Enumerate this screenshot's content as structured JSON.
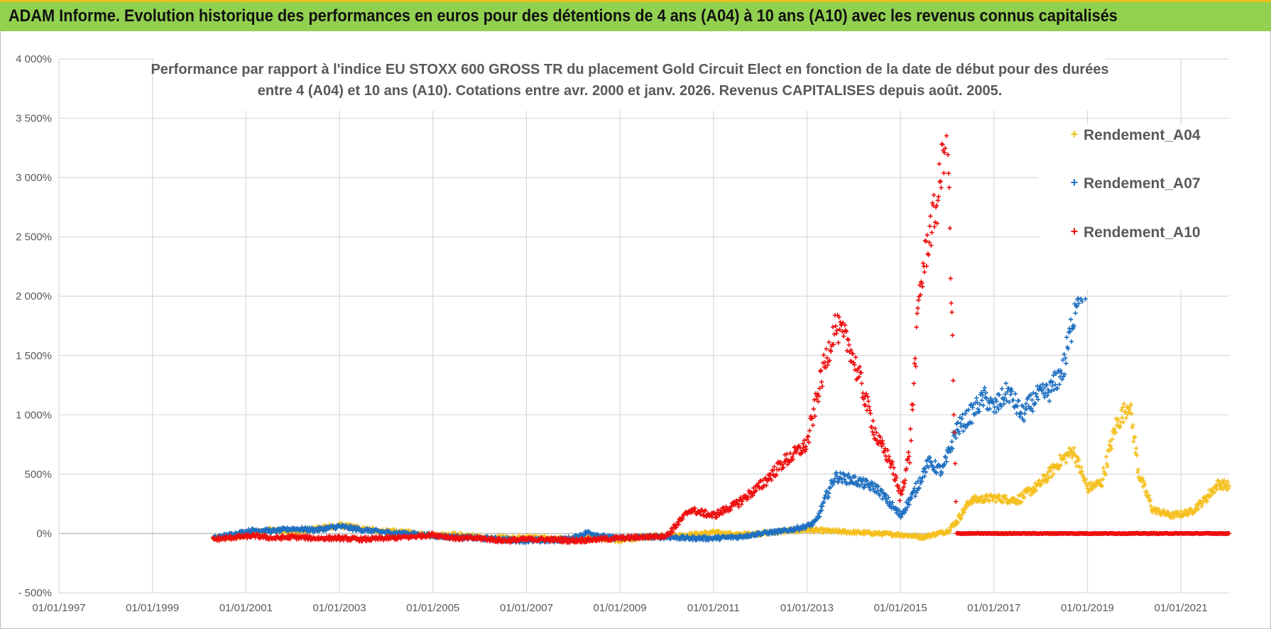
{
  "header": {
    "title": "ADAM Informe. Evolution historique des performances en euros pour des détentions de 4 ans (A04) à 10 ans (A10) avec les revenus connus capitalisés"
  },
  "colors": {
    "banner_bg": "#92d050",
    "banner_border": "#e8c21a",
    "grid": "#d9d9d9",
    "text": "#595959"
  },
  "chart_data": {
    "type": "scatter",
    "title_lines": [
      "Performance par rapport à l'indice EU STOXX 600 GROSS TR  du placement Gold Circuit Elect  en fonction de la date de début pour des durées",
      "entre 4 (A04) et 10 ans (A10). Cotations entre avr. 2000 et janv. 2026. Revenus CAPITALISES depuis août. 2005."
    ],
    "xlabel": "",
    "ylabel": "",
    "xlim": [
      1997.0,
      2022.03
    ],
    "ylim": [
      -500,
      4000
    ],
    "y_ticks": [
      -500,
      0,
      500,
      1000,
      1500,
      2000,
      2500,
      3000,
      3500,
      4000
    ],
    "y_tick_labels": [
      "- 500%",
      "0%",
      "500%",
      "1 000%",
      "1 500%",
      "2 000%",
      "2 500%",
      "3 000%",
      "3 500%",
      "4 000%"
    ],
    "x_ticks": [
      1997,
      1999,
      2001,
      2003,
      2005,
      2007,
      2009,
      2011,
      2013,
      2015,
      2017,
      2019,
      2021
    ],
    "x_tick_labels": [
      "01/01/1997",
      "01/01/1999",
      "01/01/2001",
      "01/01/2003",
      "01/01/2005",
      "01/01/2007",
      "01/01/2009",
      "01/01/2011",
      "01/01/2013",
      "01/01/2015",
      "01/01/2017",
      "01/01/2019",
      "01/01/2021"
    ],
    "marker": "+",
    "grid": true,
    "legend_position": "top-right",
    "series": [
      {
        "name": "Rendement_A04",
        "color": "#f5bf1c",
        "x": [
          2000.3,
          2001.0,
          2001.5,
          2002.0,
          2002.5,
          2003.0,
          2003.5,
          2004.0,
          2004.5,
          2005.0,
          2005.5,
          2006.0,
          2006.5,
          2007.0,
          2007.5,
          2008.0,
          2008.5,
          2009.0,
          2009.5,
          2010.0,
          2010.5,
          2011.0,
          2011.5,
          2012.0,
          2012.5,
          2013.0,
          2013.5,
          2014.0,
          2014.5,
          2015.0,
          2015.5,
          2016.0,
          2016.2,
          2016.5,
          2017.0,
          2017.5,
          2018.0,
          2018.4,
          2018.7,
          2019.0,
          2019.3,
          2019.6,
          2019.9,
          2020.1,
          2020.4,
          2020.8,
          2021.2,
          2021.5,
          2021.8,
          2022.03
        ],
        "values": [
          -40,
          -20,
          30,
          10,
          40,
          70,
          40,
          20,
          10,
          -20,
          -10,
          -30,
          -40,
          -30,
          -40,
          -50,
          -30,
          -60,
          -30,
          -20,
          -10,
          10,
          -10,
          0,
          20,
          30,
          20,
          10,
          0,
          -10,
          -30,
          20,
          100,
          280,
          300,
          280,
          420,
          600,
          700,
          380,
          430,
          900,
          1100,
          500,
          200,
          150,
          180,
          280,
          420,
          400
        ]
      },
      {
        "name": "Rendement_A07",
        "color": "#1f70c1",
        "x": [
          2000.3,
          2000.8,
          2001.2,
          2001.6,
          2002.0,
          2002.5,
          2003.0,
          2003.5,
          2004.0,
          2004.5,
          2005.0,
          2005.5,
          2006.0,
          2006.5,
          2007.0,
          2007.5,
          2008.0,
          2008.3,
          2008.7,
          2009.0,
          2009.5,
          2010.0,
          2010.5,
          2011.0,
          2011.5,
          2012.0,
          2012.5,
          2013.0,
          2013.2,
          2013.4,
          2013.6,
          2014.0,
          2014.5,
          2015.0,
          2015.3,
          2015.6,
          2015.9,
          2016.2,
          2016.5,
          2016.8,
          2017.0,
          2017.3,
          2017.6,
          2017.9,
          2018.2,
          2018.5,
          2018.8,
          2019.0
        ],
        "values": [
          -40,
          0,
          30,
          20,
          40,
          30,
          60,
          30,
          10,
          0,
          -20,
          -30,
          -40,
          -50,
          -60,
          -60,
          -40,
          10,
          -30,
          -40,
          -30,
          -30,
          -40,
          -40,
          -30,
          0,
          20,
          60,
          100,
          300,
          480,
          450,
          380,
          150,
          350,
          600,
          520,
          880,
          1000,
          1150,
          1050,
          1200,
          1000,
          1150,
          1200,
          1400,
          2050,
          2100
        ]
      },
      {
        "name": "Rendement_A10",
        "color": "#ee0f0f",
        "x": [
          2000.3,
          2000.8,
          2001.2,
          2001.6,
          2002.0,
          2002.5,
          2003.0,
          2003.5,
          2004.0,
          2004.5,
          2005.0,
          2005.5,
          2006.0,
          2006.5,
          2007.0,
          2007.5,
          2008.0,
          2008.5,
          2009.0,
          2009.5,
          2010.0,
          2010.5,
          2011.0,
          2011.5,
          2012.0,
          2012.5,
          2013.0,
          2013.3,
          2013.6,
          2013.9,
          2014.2,
          2014.5,
          2014.8,
          2015.0,
          2015.2,
          2015.4,
          2015.6,
          2015.8,
          2016.0,
          2016.2,
          2016.5,
          2017.0,
          2017.5,
          2018.0,
          2018.5,
          2019.0,
          2019.5,
          2020.0,
          2020.5,
          2021.0,
          2021.5,
          2022.03
        ],
        "values": [
          -50,
          -30,
          -20,
          -40,
          -30,
          -40,
          -40,
          -50,
          -40,
          -30,
          -10,
          -40,
          -40,
          -60,
          -50,
          -50,
          -60,
          -50,
          -40,
          -30,
          -20,
          200,
          150,
          250,
          400,
          600,
          750,
          1300,
          1750,
          1600,
          1200,
          800,
          600,
          300,
          700,
          2000,
          2500,
          2800,
          3500,
          0,
          0,
          0,
          0,
          0,
          0,
          0,
          0,
          0,
          0,
          0,
          0,
          0
        ]
      }
    ]
  }
}
